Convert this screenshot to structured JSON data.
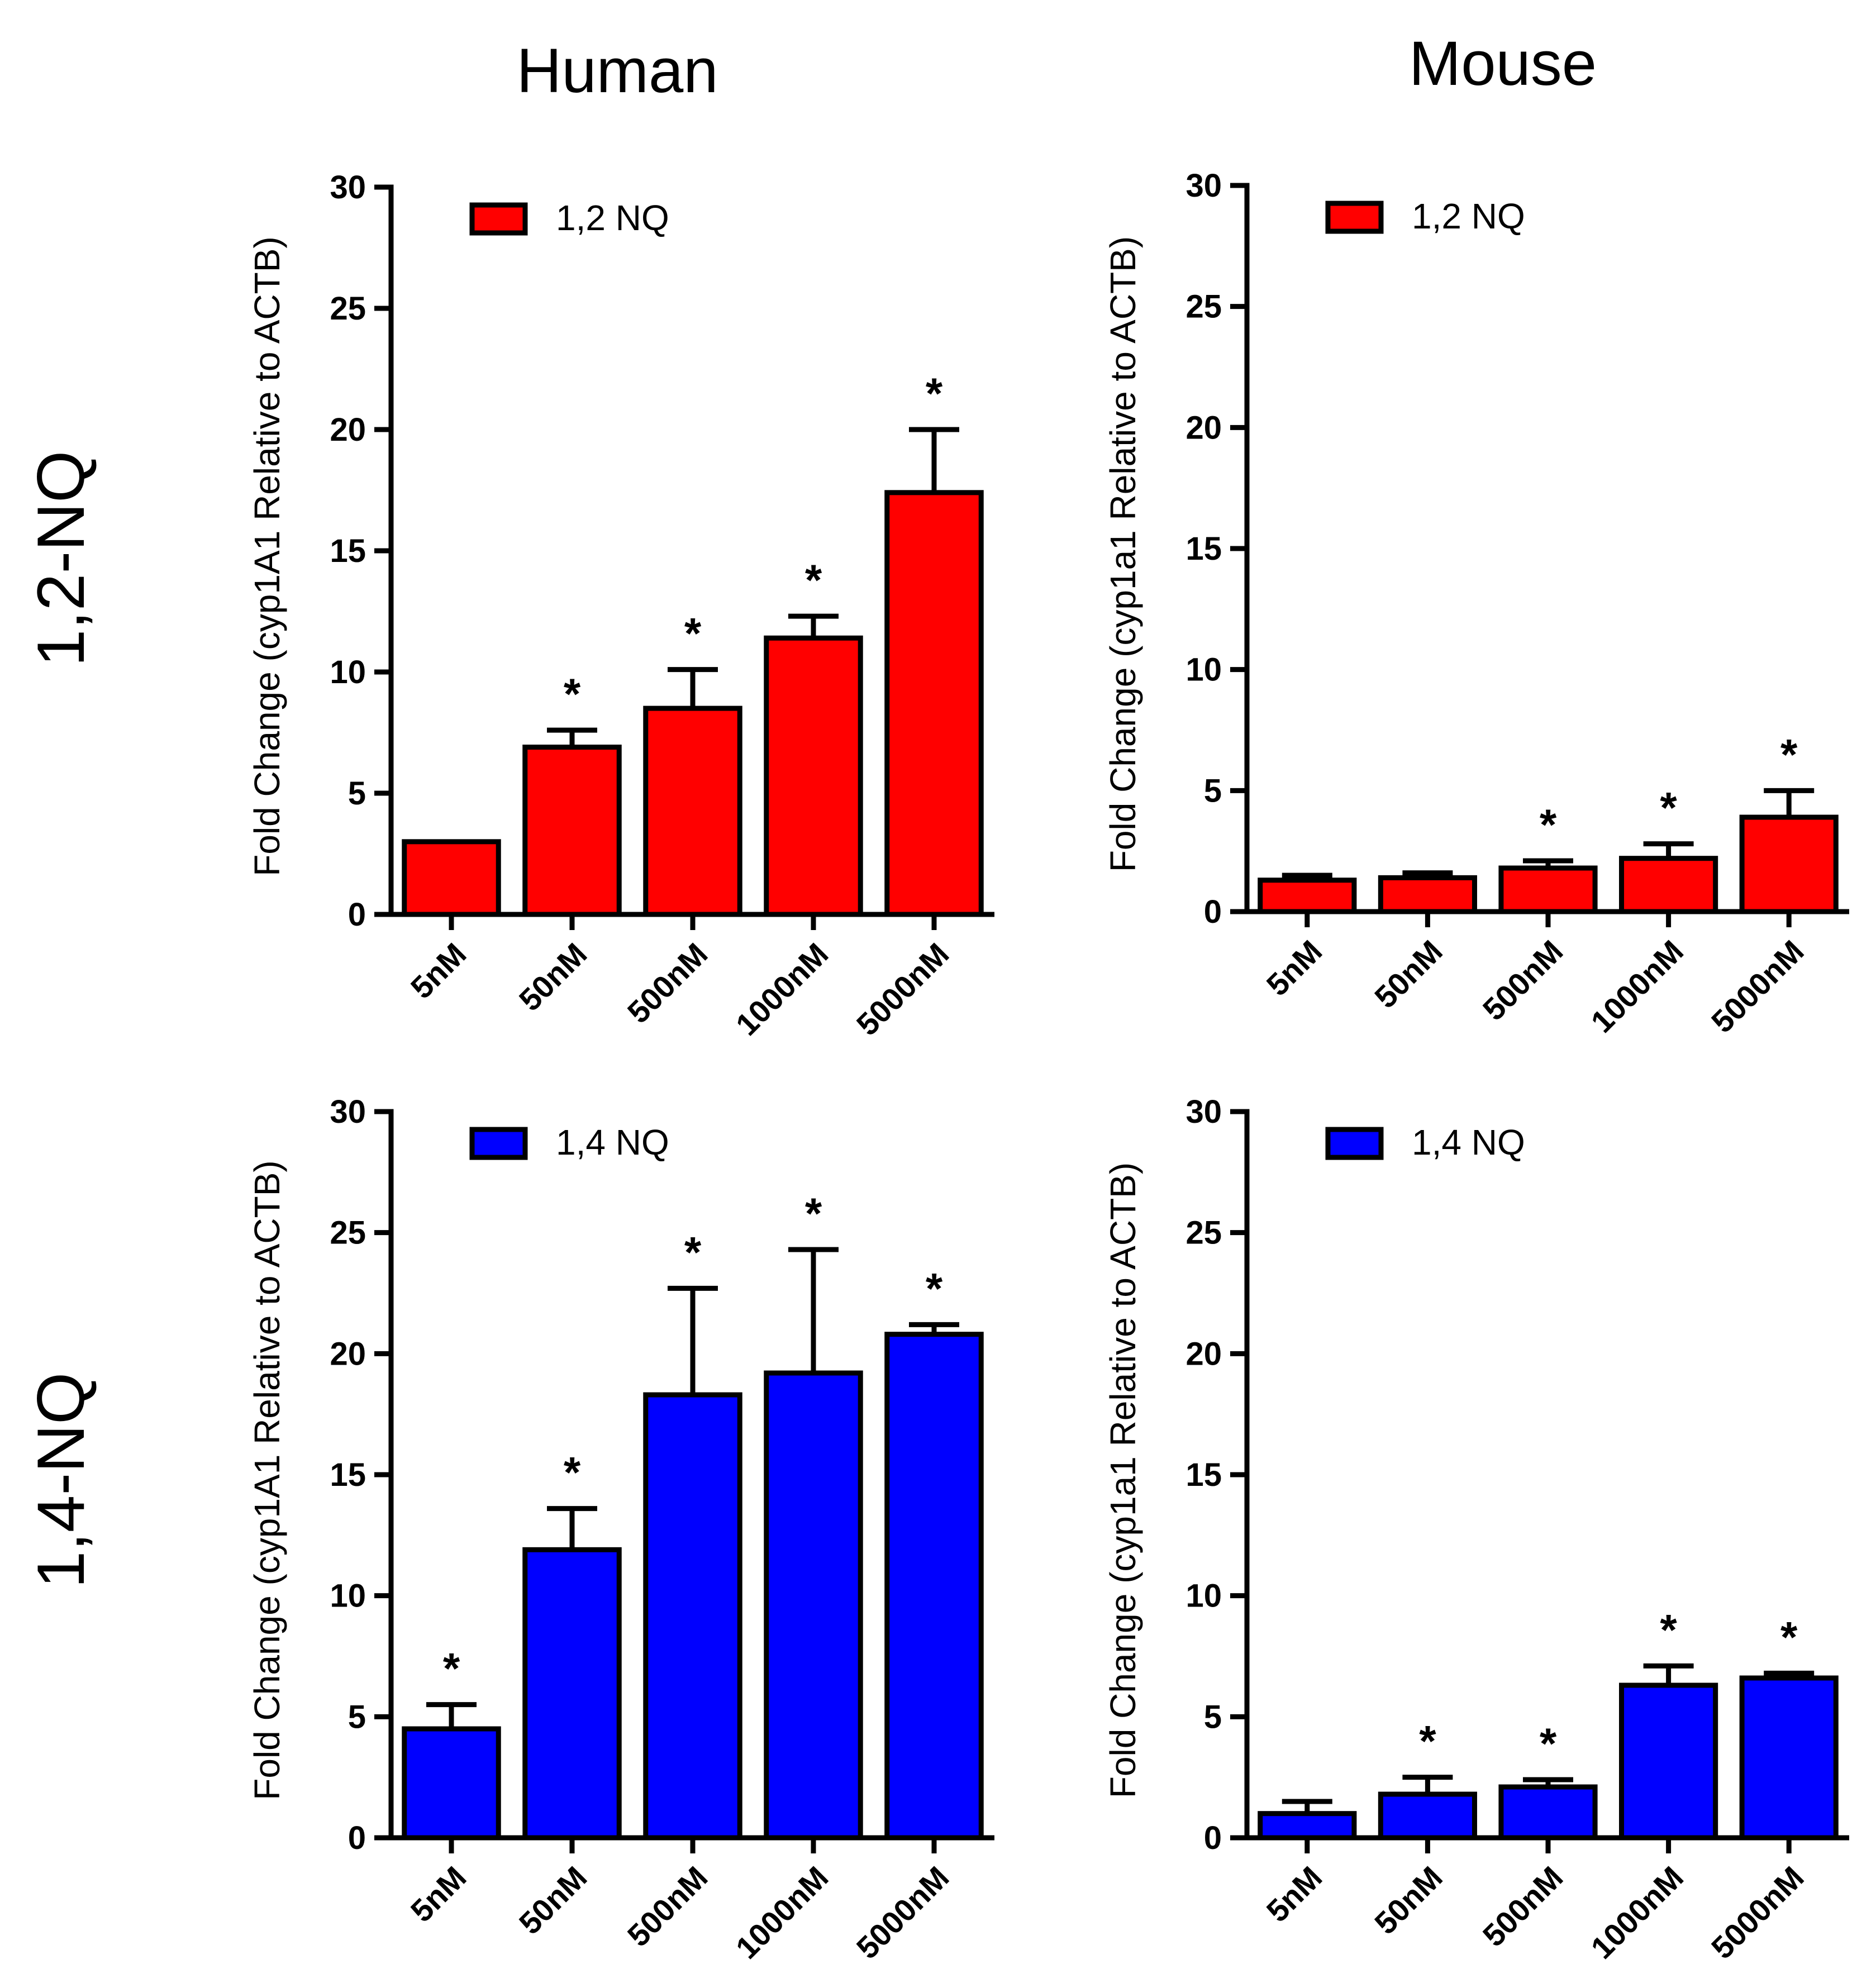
{
  "column_titles": [
    "Human",
    "Mouse"
  ],
  "row_titles": [
    "1,2-NQ",
    "1,4-NQ"
  ],
  "colors": {
    "red": "#ff0000",
    "blue": "#0000ff",
    "axis": "#000000"
  },
  "chart_data": [
    {
      "type": "bar",
      "panel": "human-1,2-NQ",
      "categories": [
        "5nM",
        "50nM",
        "500nM",
        "1000nM",
        "5000nM"
      ],
      "series": [
        {
          "name": "1,2 NQ",
          "color": "#ff0000",
          "values": [
            3.0,
            6.9,
            8.5,
            11.4,
            17.4
          ],
          "errors": [
            0.0,
            0.7,
            1.6,
            0.9,
            2.6
          ],
          "significant": [
            false,
            true,
            true,
            true,
            true
          ]
        }
      ],
      "ylabel": "Fold Change (cyp1A1 Relative to ACTB)",
      "ylim": [
        0,
        30
      ],
      "yticks": [
        0,
        5,
        10,
        15,
        20,
        25,
        30
      ],
      "legend": "top-left"
    },
    {
      "type": "bar",
      "panel": "mouse-1,2-NQ",
      "categories": [
        "5nM",
        "50nM",
        "500nM",
        "1000nM",
        "5000nM"
      ],
      "series": [
        {
          "name": "1,2 NQ",
          "color": "#ff0000",
          "values": [
            1.3,
            1.4,
            1.8,
            2.2,
            3.9
          ],
          "errors": [
            0.2,
            0.2,
            0.3,
            0.6,
            1.1
          ],
          "significant": [
            false,
            false,
            true,
            true,
            true
          ]
        }
      ],
      "ylabel": "Fold Change (cyp1a1 Relative to ACTB)",
      "ylim": [
        0,
        30
      ],
      "yticks": [
        0,
        5,
        10,
        15,
        20,
        25,
        30
      ],
      "legend": "top-left"
    },
    {
      "type": "bar",
      "panel": "human-1,4-NQ",
      "categories": [
        "5nM",
        "50nM",
        "500nM",
        "1000nM",
        "5000nM"
      ],
      "series": [
        {
          "name": "1,4 NQ",
          "color": "#0000ff",
          "values": [
            4.5,
            11.9,
            18.3,
            19.2,
            20.8
          ],
          "errors": [
            1.0,
            1.7,
            4.4,
            5.1,
            0.4
          ],
          "significant": [
            true,
            true,
            true,
            true,
            true
          ]
        }
      ],
      "ylabel": "Fold Change (cyp1A1 Relative to ACTB)",
      "ylim": [
        0,
        30
      ],
      "yticks": [
        0,
        5,
        10,
        15,
        20,
        25,
        30
      ],
      "legend": "top-left"
    },
    {
      "type": "bar",
      "panel": "mouse-1,4-NQ",
      "categories": [
        "5nM",
        "50nM",
        "500nM",
        "1000nM",
        "5000nM"
      ],
      "series": [
        {
          "name": "1,4 NQ",
          "color": "#0000ff",
          "values": [
            1.0,
            1.8,
            2.1,
            6.3,
            6.6
          ],
          "errors": [
            0.5,
            0.7,
            0.3,
            0.8,
            0.2
          ],
          "significant": [
            false,
            true,
            true,
            true,
            true
          ]
        }
      ],
      "ylabel": "Fold Change (cyp1a1 Relative to ACTB)",
      "ylim": [
        0,
        30
      ],
      "yticks": [
        0,
        5,
        10,
        15,
        20,
        25,
        30
      ],
      "legend": "top-left"
    }
  ]
}
